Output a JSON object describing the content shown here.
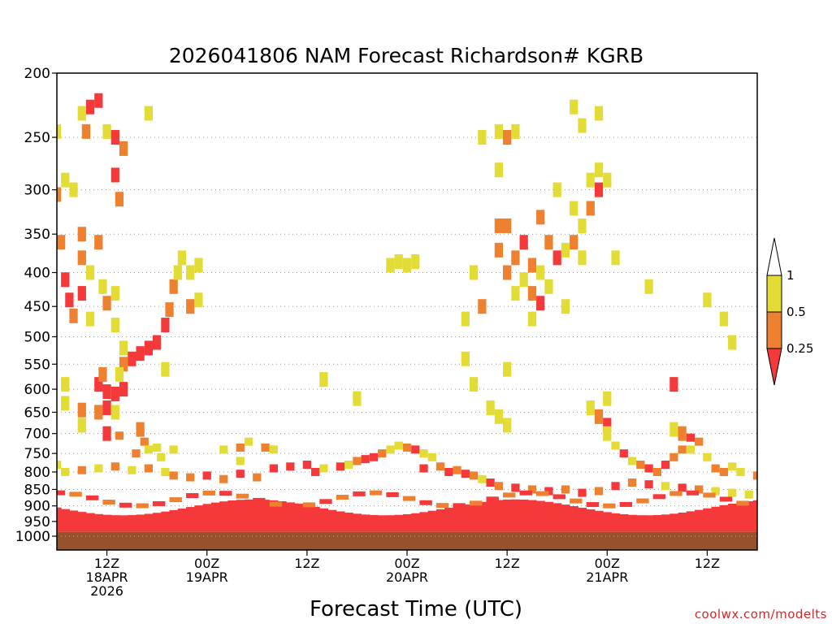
{
  "chart_data": {
    "type": "heatmap",
    "title": "2026041806 NAM Forecast Richardson# KGRB",
    "xlabel": "Forecast Time (UTC)",
    "ylabel": "",
    "y_scale": "pressure (log)",
    "y_reversed": true,
    "ylim": [
      1000,
      200
    ],
    "yticks": [
      200,
      250,
      300,
      350,
      400,
      450,
      500,
      550,
      600,
      650,
      700,
      750,
      800,
      850,
      900,
      950,
      1000
    ],
    "y_gridlines": true,
    "x_range_hours": [
      0,
      84
    ],
    "x_tick_hours": [
      6,
      18,
      30,
      42,
      54,
      66,
      78
    ],
    "xticks": [
      {
        "lines": [
          "12Z",
          "18APR",
          "2026"
        ]
      },
      {
        "lines": [
          "00Z",
          "19APR"
        ]
      },
      {
        "lines": [
          "12Z"
        ]
      },
      {
        "lines": [
          "00Z",
          "20APR"
        ]
      },
      {
        "lines": [
          "12Z"
        ]
      },
      {
        "lines": [
          "00Z",
          "21APR"
        ]
      },
      {
        "lines": [
          "12Z"
        ]
      }
    ],
    "colorbar": {
      "labels": [
        "1",
        "0.5",
        "0.25"
      ],
      "bins": [
        {
          "max": 0.25,
          "color": "#f5393b"
        },
        {
          "max": 0.5,
          "color": "#ee8130"
        },
        {
          "max": 1.0,
          "color": "#e4dc36"
        }
      ],
      "placement": "right",
      "extend": "both"
    },
    "ground_color": "#96522c",
    "ground_top_hpa": 985,
    "grid": [
      {
        "h": 0,
        "p": 245,
        "v": 0.8
      },
      {
        "h": 0,
        "p": 305,
        "v": 0.4
      },
      {
        "h": 0.5,
        "p": 360,
        "v": 0.3
      },
      {
        "h": 1,
        "p": 410,
        "v": 0.2
      },
      {
        "h": 1.5,
        "p": 440,
        "v": 0.15
      },
      {
        "h": 2,
        "p": 465,
        "v": 0.4
      },
      {
        "h": 2,
        "p": 300,
        "v": 0.8
      },
      {
        "h": 1,
        "p": 290,
        "v": 0.7
      },
      {
        "h": 3,
        "p": 430,
        "v": 0.2
      },
      {
        "h": 3,
        "p": 380,
        "v": 0.3
      },
      {
        "h": 3,
        "p": 350,
        "v": 0.4
      },
      {
        "h": 3,
        "p": 230,
        "v": 0.6
      },
      {
        "h": 3.5,
        "p": 245,
        "v": 0.4
      },
      {
        "h": 4,
        "p": 225,
        "v": 0.2
      },
      {
        "h": 5,
        "p": 220,
        "v": 0.1
      },
      {
        "h": 4,
        "p": 400,
        "v": 0.6
      },
      {
        "h": 4,
        "p": 470,
        "v": 0.7
      },
      {
        "h": 5,
        "p": 360,
        "v": 0.3
      },
      {
        "h": 5.5,
        "p": 420,
        "v": 0.8
      },
      {
        "h": 6,
        "p": 445,
        "v": 0.3
      },
      {
        "h": 6,
        "p": 245,
        "v": 0.6
      },
      {
        "h": 7,
        "p": 250,
        "v": 0.2
      },
      {
        "h": 7,
        "p": 285,
        "v": 0.1
      },
      {
        "h": 7.5,
        "p": 310,
        "v": 0.3
      },
      {
        "h": 7,
        "p": 430,
        "v": 0.7
      },
      {
        "h": 7,
        "p": 480,
        "v": 0.8
      },
      {
        "h": 8,
        "p": 260,
        "v": 0.4
      },
      {
        "h": 8,
        "p": 520,
        "v": 0.8
      },
      {
        "h": 8,
        "p": 550,
        "v": 0.3
      },
      {
        "h": 9,
        "p": 540,
        "v": 0.1
      },
      {
        "h": 10,
        "p": 530,
        "v": 0.1
      },
      {
        "h": 11,
        "p": 520,
        "v": 0.15
      },
      {
        "h": 12,
        "p": 510,
        "v": 0.1
      },
      {
        "h": 13,
        "p": 480,
        "v": 0.2
      },
      {
        "h": 13.5,
        "p": 455,
        "v": 0.3
      },
      {
        "h": 14,
        "p": 420,
        "v": 0.4
      },
      {
        "h": 14.5,
        "p": 400,
        "v": 0.7
      },
      {
        "h": 15,
        "p": 380,
        "v": 0.8
      },
      {
        "h": 16,
        "p": 400,
        "v": 0.6
      },
      {
        "h": 16,
        "p": 450,
        "v": 0.4
      },
      {
        "h": 17,
        "p": 440,
        "v": 0.7
      },
      {
        "h": 17,
        "p": 390,
        "v": 0.8
      },
      {
        "h": 13,
        "p": 560,
        "v": 0.7
      },
      {
        "h": 11,
        "p": 230,
        "v": 0.8
      },
      {
        "h": 5,
        "p": 590,
        "v": 0.15
      },
      {
        "h": 6,
        "p": 605,
        "v": 0.2
      },
      {
        "h": 7,
        "p": 610,
        "v": 0.15
      },
      {
        "h": 8,
        "p": 600,
        "v": 0.25
      },
      {
        "h": 5.5,
        "p": 570,
        "v": 0.35
      },
      {
        "h": 7.5,
        "p": 570,
        "v": 0.6
      },
      {
        "h": 3,
        "p": 645,
        "v": 0.35
      },
      {
        "h": 3,
        "p": 680,
        "v": 0.7
      },
      {
        "h": 5,
        "p": 650,
        "v": 0.3
      },
      {
        "h": 6,
        "p": 640,
        "v": 0.2
      },
      {
        "h": 7,
        "p": 650,
        "v": 0.6
      },
      {
        "h": 1,
        "p": 590,
        "v": 0.7
      },
      {
        "h": 1,
        "p": 630,
        "v": 0.8
      },
      {
        "h": 6,
        "p": 700,
        "v": 0.2
      },
      {
        "h": 7.5,
        "p": 705,
        "v": 0.3
      },
      {
        "h": 10,
        "p": 690,
        "v": 0.4
      },
      {
        "h": 10.5,
        "p": 720,
        "v": 0.5
      },
      {
        "h": 9.5,
        "p": 750,
        "v": 0.4
      },
      {
        "h": 11,
        "p": 740,
        "v": 0.6
      },
      {
        "h": 12,
        "p": 735,
        "v": 0.7
      },
      {
        "h": 12.5,
        "p": 760,
        "v": 0.8
      },
      {
        "h": 14,
        "p": 740,
        "v": 0.9
      },
      {
        "h": 20,
        "p": 740,
        "v": 0.6
      },
      {
        "h": 22,
        "p": 735,
        "v": 0.4
      },
      {
        "h": 23,
        "p": 720,
        "v": 0.7
      },
      {
        "h": 25,
        "p": 735,
        "v": 0.45
      },
      {
        "h": 26,
        "p": 740,
        "v": 0.7
      },
      {
        "h": 22,
        "p": 770,
        "v": 0.7
      },
      {
        "h": 32,
        "p": 580,
        "v": 0.8
      },
      {
        "h": 36,
        "p": 620,
        "v": 0.9
      },
      {
        "h": 40,
        "p": 390,
        "v": 0.7
      },
      {
        "h": 41,
        "p": 385,
        "v": 0.8
      },
      {
        "h": 42,
        "p": 390,
        "v": 0.6
      },
      {
        "h": 43,
        "p": 385,
        "v": 0.7
      },
      {
        "h": 0,
        "p": 780,
        "v": 0.8
      },
      {
        "h": 1,
        "p": 800,
        "v": 0.6
      },
      {
        "h": 3,
        "p": 795,
        "v": 0.4
      },
      {
        "h": 5,
        "p": 790,
        "v": 0.8
      },
      {
        "h": 7,
        "p": 785,
        "v": 0.5
      },
      {
        "h": 9,
        "p": 795,
        "v": 0.6
      },
      {
        "h": 11,
        "p": 790,
        "v": 0.3
      },
      {
        "h": 13,
        "p": 800,
        "v": 0.7
      },
      {
        "h": 14,
        "p": 810,
        "v": 0.5
      },
      {
        "h": 16,
        "p": 815,
        "v": 0.3
      },
      {
        "h": 18,
        "p": 810,
        "v": 0.2
      },
      {
        "h": 20,
        "p": 820,
        "v": 0.3
      },
      {
        "h": 22,
        "p": 805,
        "v": 0.2
      },
      {
        "h": 24,
        "p": 815,
        "v": 0.4
      },
      {
        "h": 26,
        "p": 790,
        "v": 0.2
      },
      {
        "h": 28,
        "p": 785,
        "v": 0.15
      },
      {
        "h": 30,
        "p": 780,
        "v": 0.2
      },
      {
        "h": 31,
        "p": 800,
        "v": 0.15
      },
      {
        "h": 32,
        "p": 790,
        "v": 0.8
      },
      {
        "h": 34,
        "p": 785,
        "v": 0.2
      },
      {
        "h": 35,
        "p": 780,
        "v": 0.7
      },
      {
        "h": 36,
        "p": 770,
        "v": 0.3
      },
      {
        "h": 37,
        "p": 765,
        "v": 0.15
      },
      {
        "h": 38,
        "p": 760,
        "v": 0.2
      },
      {
        "h": 39,
        "p": 750,
        "v": 0.3
      },
      {
        "h": 40,
        "p": 740,
        "v": 0.7
      },
      {
        "h": 41,
        "p": 730,
        "v": 0.8
      },
      {
        "h": 42,
        "p": 735,
        "v": 0.3
      },
      {
        "h": 43,
        "p": 740,
        "v": 0.2
      },
      {
        "h": 44,
        "p": 750,
        "v": 0.7
      },
      {
        "h": 45,
        "p": 760,
        "v": 0.8
      },
      {
        "h": 44,
        "p": 790,
        "v": 0.2
      },
      {
        "h": 46,
        "p": 785,
        "v": 0.3
      },
      {
        "h": 47,
        "p": 800,
        "v": 0.15
      },
      {
        "h": 48,
        "p": 795,
        "v": 0.4
      },
      {
        "h": 49,
        "p": 805,
        "v": 0.2
      },
      {
        "h": 50,
        "p": 810,
        "v": 0.3
      },
      {
        "h": 51,
        "p": 820,
        "v": 0.6
      },
      {
        "h": 52,
        "p": 830,
        "v": 0.2
      },
      {
        "h": 53,
        "p": 840,
        "v": 0.3
      },
      {
        "h": 55,
        "p": 845,
        "v": 0.2
      },
      {
        "h": 57,
        "p": 850,
        "v": 0.3
      },
      {
        "h": 59,
        "p": 855,
        "v": 0.2
      },
      {
        "h": 61,
        "p": 850,
        "v": 0.4
      },
      {
        "h": 63,
        "p": 860,
        "v": 0.2
      },
      {
        "h": 65,
        "p": 855,
        "v": 0.3
      },
      {
        "h": 67,
        "p": 840,
        "v": 0.2
      },
      {
        "h": 69,
        "p": 830,
        "v": 0.4
      },
      {
        "h": 71,
        "p": 835,
        "v": 0.2
      },
      {
        "h": 73,
        "p": 840,
        "v": 0.6
      },
      {
        "h": 75,
        "p": 845,
        "v": 0.2
      },
      {
        "h": 77,
        "p": 850,
        "v": 0.4
      },
      {
        "h": 79,
        "p": 855,
        "v": 0.7
      },
      {
        "h": 81,
        "p": 860,
        "v": 0.8
      },
      {
        "h": 83,
        "p": 865,
        "v": 0.7
      },
      {
        "h": 49,
        "p": 540,
        "v": 0.7
      },
      {
        "h": 49,
        "p": 470,
        "v": 0.8
      },
      {
        "h": 50,
        "p": 400,
        "v": 0.9
      },
      {
        "h": 51,
        "p": 450,
        "v": 0.4
      },
      {
        "h": 50,
        "p": 590,
        "v": 0.9
      },
      {
        "h": 52,
        "p": 640,
        "v": 0.9
      },
      {
        "h": 53,
        "p": 660,
        "v": 0.8
      },
      {
        "h": 54,
        "p": 680,
        "v": 0.7
      },
      {
        "h": 54,
        "p": 560,
        "v": 0.8
      },
      {
        "h": 51,
        "p": 250,
        "v": 0.8
      },
      {
        "h": 53,
        "p": 245,
        "v": 0.6
      },
      {
        "h": 54,
        "p": 250,
        "v": 0.4
      },
      {
        "h": 55,
        "p": 245,
        "v": 0.7
      },
      {
        "h": 53,
        "p": 280,
        "v": 0.8
      },
      {
        "h": 53,
        "p": 340,
        "v": 0.3
      },
      {
        "h": 53,
        "p": 370,
        "v": 0.4
      },
      {
        "h": 54,
        "p": 340,
        "v": 0.35
      },
      {
        "h": 54,
        "p": 400,
        "v": 0.45
      },
      {
        "h": 55,
        "p": 380,
        "v": 0.4
      },
      {
        "h": 55,
        "p": 430,
        "v": 0.6
      },
      {
        "h": 56,
        "p": 410,
        "v": 0.7
      },
      {
        "h": 56,
        "p": 360,
        "v": 0.2
      },
      {
        "h": 57,
        "p": 390,
        "v": 0.4
      },
      {
        "h": 57,
        "p": 430,
        "v": 0.3
      },
      {
        "h": 57,
        "p": 470,
        "v": 0.8
      },
      {
        "h": 58,
        "p": 445,
        "v": 0.15
      },
      {
        "h": 58,
        "p": 400,
        "v": 0.8
      },
      {
        "h": 58,
        "p": 330,
        "v": 0.4
      },
      {
        "h": 59,
        "p": 360,
        "v": 0.3
      },
      {
        "h": 59,
        "p": 420,
        "v": 0.7
      },
      {
        "h": 60,
        "p": 380,
        "v": 0.2
      },
      {
        "h": 60,
        "p": 300,
        "v": 0.8
      },
      {
        "h": 61,
        "p": 370,
        "v": 0.8
      },
      {
        "h": 61,
        "p": 450,
        "v": 0.7
      },
      {
        "h": 62,
        "p": 360,
        "v": 0.3
      },
      {
        "h": 62,
        "p": 320,
        "v": 0.7
      },
      {
        "h": 63,
        "p": 340,
        "v": 0.6
      },
      {
        "h": 63,
        "p": 380,
        "v": 0.8
      },
      {
        "h": 64,
        "p": 290,
        "v": 0.7
      },
      {
        "h": 64,
        "p": 320,
        "v": 0.4
      },
      {
        "h": 65,
        "p": 280,
        "v": 0.8
      },
      {
        "h": 65,
        "p": 300,
        "v": 0.15
      },
      {
        "h": 66,
        "p": 290,
        "v": 0.8
      },
      {
        "h": 65,
        "p": 230,
        "v": 0.6
      },
      {
        "h": 62,
        "p": 225,
        "v": 0.8
      },
      {
        "h": 63,
        "p": 240,
        "v": 0.7
      },
      {
        "h": 66,
        "p": 620,
        "v": 0.8
      },
      {
        "h": 64,
        "p": 640,
        "v": 0.7
      },
      {
        "h": 65,
        "p": 660,
        "v": 0.3
      },
      {
        "h": 66,
        "p": 680,
        "v": 0.15
      },
      {
        "h": 66,
        "p": 700,
        "v": 0.8
      },
      {
        "h": 67,
        "p": 730,
        "v": 0.7
      },
      {
        "h": 68,
        "p": 750,
        "v": 0.2
      },
      {
        "h": 69,
        "p": 770,
        "v": 0.7
      },
      {
        "h": 70,
        "p": 780,
        "v": 0.3
      },
      {
        "h": 71,
        "p": 790,
        "v": 0.2
      },
      {
        "h": 72,
        "p": 800,
        "v": 0.3
      },
      {
        "h": 73,
        "p": 780,
        "v": 0.2
      },
      {
        "h": 74,
        "p": 760,
        "v": 0.4
      },
      {
        "h": 75,
        "p": 740,
        "v": 0.3
      },
      {
        "h": 76,
        "p": 740,
        "v": 0.8
      },
      {
        "h": 74,
        "p": 690,
        "v": 0.7
      },
      {
        "h": 75,
        "p": 700,
        "v": 0.3
      },
      {
        "h": 76,
        "p": 710,
        "v": 0.2
      },
      {
        "h": 77,
        "p": 720,
        "v": 0.4
      },
      {
        "h": 78,
        "p": 760,
        "v": 0.7
      },
      {
        "h": 79,
        "p": 790,
        "v": 0.4
      },
      {
        "h": 80,
        "p": 800,
        "v": 0.3
      },
      {
        "h": 81,
        "p": 785,
        "v": 0.7
      },
      {
        "h": 82,
        "p": 800,
        "v": 0.8
      },
      {
        "h": 84,
        "p": 810,
        "v": 0.4
      },
      {
        "h": 67,
        "p": 380,
        "v": 0.7
      },
      {
        "h": 71,
        "p": 420,
        "v": 0.8
      },
      {
        "h": 74,
        "p": 590,
        "v": 0.2
      },
      {
        "h": 78,
        "p": 440,
        "v": 0.8
      },
      {
        "h": 80,
        "p": 470,
        "v": 0.7
      },
      {
        "h": 81,
        "p": 510,
        "v": 0.8
      }
    ]
  },
  "credit": "coolwx.com/modelts"
}
